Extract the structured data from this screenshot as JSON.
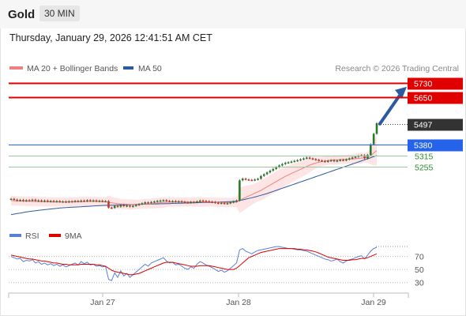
{
  "header": {
    "instrument": "Gold",
    "interval": "30 MIN"
  },
  "timestamp": "Thursday, January 29, 2026 12:41:51 AM CET",
  "legend": {
    "ma20_bb": {
      "label": "MA 20 + Bollinger Bands",
      "color": "#f08080"
    },
    "ma50": {
      "label": "MA 50",
      "color": "#2c5aa0"
    },
    "credit": "Research © 2026 Trading Central"
  },
  "rsi_legend": {
    "rsi": {
      "label": "RSI",
      "color": "#5a7fd6"
    },
    "ma9": {
      "label": "9MA",
      "color": "#e00000"
    }
  },
  "levels": [
    {
      "value": 5730,
      "label": "5730",
      "kind": "resistance",
      "color": "#e00000"
    },
    {
      "value": 5650,
      "label": "5650",
      "kind": "resistance",
      "color": "#e00000"
    },
    {
      "value": 5497,
      "label": "5497",
      "kind": "last",
      "color": "#333333"
    },
    {
      "value": 5380,
      "label": "5380",
      "kind": "pivot",
      "color": "#2563eb"
    },
    {
      "value": 5315,
      "label": "5315",
      "kind": "support",
      "color": "#2e8b2e"
    },
    {
      "value": 5255,
      "label": "5255",
      "kind": "support",
      "color": "#2e8b2e"
    }
  ],
  "chart_data": {
    "type": "candlestick",
    "x_ticks": [
      "Jan 27",
      "Jan 28",
      "Jan 29"
    ],
    "price_ylim": [
      4920,
      5770
    ],
    "candles": [
      5070,
      5065,
      5060,
      5064,
      5058,
      5062,
      5060,
      5065,
      5058,
      5061,
      5056,
      5060,
      5055,
      5058,
      5054,
      5057,
      5053,
      5055,
      5052,
      5056,
      5054,
      5058,
      5055,
      5060,
      5057,
      5062,
      5058,
      5061,
      5056,
      5059,
      5055,
      5057,
      5020,
      5018,
      5030,
      5025,
      5035,
      5028,
      5032,
      5026,
      5030,
      5035,
      5040,
      5045,
      5050,
      5048,
      5052,
      5055,
      5058,
      5060,
      5062,
      5058,
      5055,
      5057,
      5054,
      5056,
      5053,
      5050,
      5048,
      5052,
      5050,
      5055,
      5060,
      5058,
      5056,
      5053,
      5052,
      5048,
      5045,
      5047,
      5043,
      5045,
      5050,
      5055,
      5060,
      5175,
      5185,
      5180,
      5178,
      5176,
      5180,
      5184,
      5200,
      5210,
      5220,
      5230,
      5240,
      5250,
      5260,
      5268,
      5275,
      5278,
      5282,
      5286,
      5290,
      5295,
      5300,
      5305,
      5300,
      5296,
      5292,
      5288,
      5285,
      5282,
      5286,
      5290,
      5284,
      5288,
      5292,
      5290,
      5294,
      5300,
      5305,
      5310,
      5315,
      5318,
      5300,
      5320,
      5380,
      5440,
      5500
    ],
    "ma20": [
      5060,
      5059,
      5058,
      5057,
      5057,
      5056,
      5056,
      5055,
      5055,
      5054,
      5054,
      5053,
      5053,
      5052,
      5052,
      5052,
      5052,
      5052,
      5052,
      5052,
      5053,
      5053,
      5054,
      5054,
      5054,
      5055,
      5055,
      5055,
      5055,
      5055,
      5054,
      5053,
      5050,
      5047,
      5045,
      5043,
      5041,
      5040,
      5039,
      5038,
      5038,
      5038,
      5039,
      5040,
      5041,
      5042,
      5043,
      5045,
      5046,
      5048,
      5049,
      5050,
      5051,
      5051,
      5052,
      5052,
      5052,
      5052,
      5052,
      5052,
      5052,
      5052,
      5052,
      5052,
      5052,
      5052,
      5052,
      5051,
      5050,
      5050,
      5049,
      5049,
      5049,
      5050,
      5051,
      5060,
      5070,
      5078,
      5086,
      5094,
      5102,
      5110,
      5118,
      5128,
      5138,
      5148,
      5158,
      5168,
      5178,
      5188,
      5198,
      5206,
      5214,
      5222,
      5230,
      5238,
      5246,
      5254,
      5262,
      5268,
      5274,
      5278,
      5282,
      5285,
      5288,
      5290,
      5291,
      5292,
      5293,
      5294,
      5295,
      5296,
      5297,
      5298,
      5300,
      5302,
      5303,
      5307,
      5316,
      5330,
      5345
    ],
    "ma50": [
      4980,
      4983,
      4986,
      4989,
      4992,
      4995,
      4998,
      5000,
      5002,
      5004,
      5006,
      5008,
      5010,
      5012,
      5014,
      5016,
      5018,
      5019,
      5020,
      5021,
      5022,
      5023,
      5024,
      5025,
      5026,
      5027,
      5028,
      5029,
      5030,
      5031,
      5032,
      5033,
      5033,
      5034,
      5034,
      5035,
      5035,
      5036,
      5036,
      5037,
      5037,
      5038,
      5038,
      5039,
      5039,
      5040,
      5040,
      5041,
      5041,
      5042,
      5042,
      5043,
      5043,
      5044,
      5044,
      5045,
      5045,
      5046,
      5046,
      5047,
      5047,
      5048,
      5048,
      5049,
      5049,
      5050,
      5050,
      5051,
      5051,
      5052,
      5052,
      5053,
      5054,
      5055,
      5057,
      5060,
      5064,
      5068,
      5072,
      5076,
      5080,
      5085,
      5090,
      5095,
      5100,
      5106,
      5112,
      5118,
      5124,
      5130,
      5136,
      5142,
      5148,
      5154,
      5160,
      5166,
      5172,
      5178,
      5184,
      5190,
      5196,
      5202,
      5208,
      5214,
      5220,
      5226,
      5232,
      5238,
      5244,
      5250,
      5256,
      5262,
      5268,
      5274,
      5280,
      5286,
      5292,
      5298,
      5304,
      5310,
      5316
    ],
    "projection": {
      "from": 5497,
      "to": 5730
    },
    "rsi_ylim": [
      20,
      90
    ],
    "rsi_levels": [
      70,
      50,
      30
    ],
    "rsi": [
      70,
      68,
      66,
      67,
      62,
      64,
      63,
      65,
      60,
      62,
      58,
      60,
      57,
      59,
      56,
      58,
      55,
      57,
      54,
      56,
      58,
      60,
      57,
      62,
      59,
      61,
      57,
      58,
      55,
      56,
      54,
      55,
      35,
      33,
      45,
      38,
      48,
      40,
      44,
      38,
      42,
      46,
      50,
      54,
      58,
      55,
      60,
      62,
      64,
      66,
      68,
      63,
      60,
      61,
      57,
      58,
      55,
      52,
      50,
      54,
      52,
      58,
      62,
      60,
      57,
      55,
      53,
      50,
      47,
      49,
      46,
      48,
      52,
      56,
      60,
      80,
      82,
      78,
      76,
      74,
      77,
      79,
      80,
      81,
      82,
      83,
      84,
      85,
      85,
      84,
      83,
      82,
      82,
      81,
      80,
      80,
      79,
      78,
      76,
      74,
      72,
      70,
      68,
      66,
      65,
      63,
      64,
      66,
      62,
      60,
      63,
      65,
      66,
      68,
      70,
      71,
      66,
      72,
      78,
      82,
      84
    ],
    "rsi_ma9": [
      72,
      71,
      70,
      69,
      68,
      67,
      66,
      66,
      65,
      64,
      63,
      63,
      62,
      61,
      60,
      60,
      59,
      58,
      58,
      57,
      57,
      57,
      57,
      58,
      58,
      58,
      58,
      58,
      57,
      57,
      56,
      55,
      52,
      49,
      47,
      46,
      45,
      44,
      43,
      42,
      42,
      43,
      44,
      46,
      48,
      50,
      52,
      54,
      56,
      58,
      60,
      61,
      61,
      61,
      60,
      59,
      58,
      57,
      56,
      55,
      55,
      55,
      56,
      56,
      56,
      56,
      55,
      54,
      53,
      52,
      51,
      50,
      50,
      50,
      52,
      56,
      60,
      64,
      68,
      70,
      72,
      74,
      76,
      77,
      78,
      79,
      80,
      81,
      82,
      82,
      82,
      82,
      82,
      82,
      81,
      81,
      80,
      80,
      79,
      78,
      77,
      75,
      73,
      71,
      69,
      68,
      67,
      66,
      65,
      64,
      64,
      64,
      65,
      65,
      66,
      67,
      67,
      68,
      70,
      72,
      74
    ]
  }
}
